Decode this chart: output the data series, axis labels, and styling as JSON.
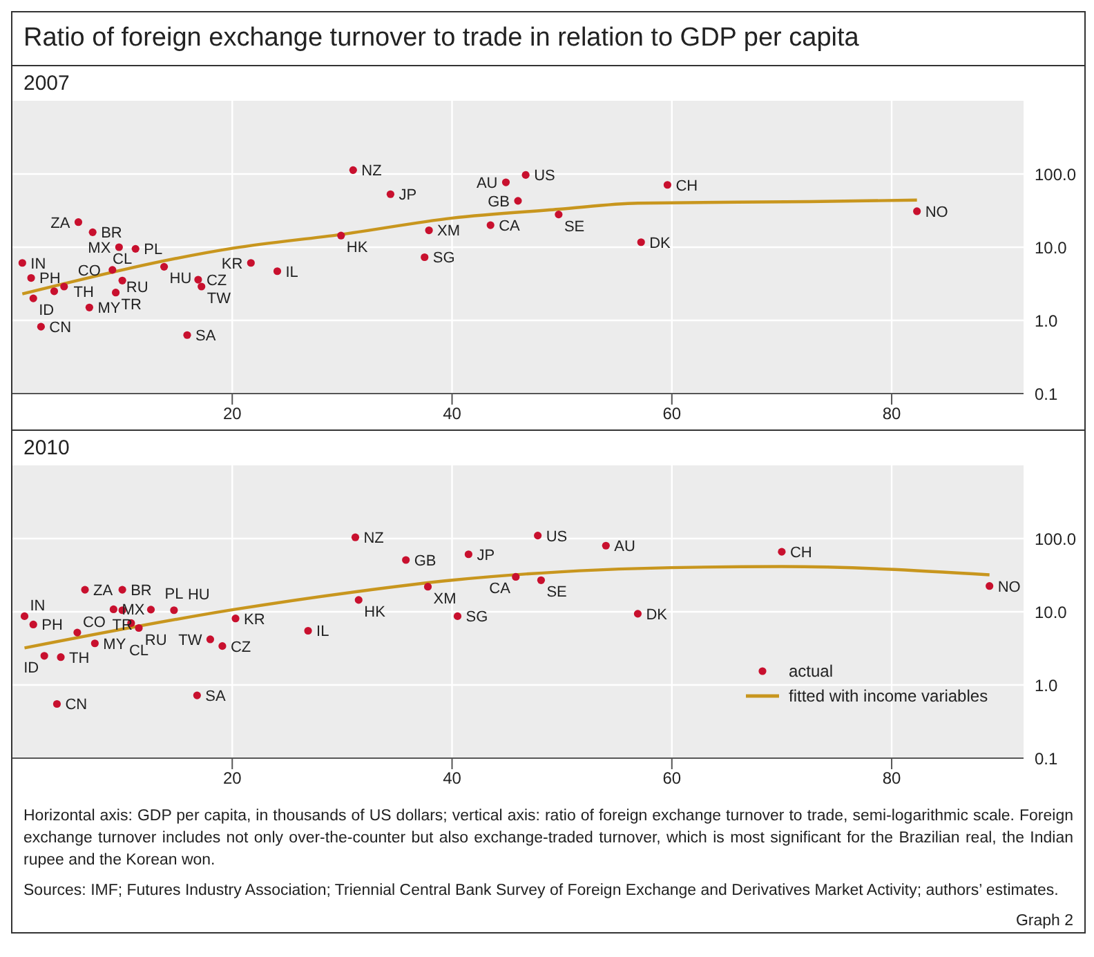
{
  "chart_data": [
    {
      "type": "scatter",
      "title": "Ratio of foreign exchange turnover to trade in relation to GDP per capita",
      "subtitle": "2007",
      "xlim": [
        0,
        92
      ],
      "xticks": [
        20,
        40,
        60,
        80
      ],
      "ylim": [
        0.1,
        1000
      ],
      "yticks": [
        {
          "value": 0.1,
          "label": "0.1"
        },
        {
          "value": 1,
          "label": "1.0"
        },
        {
          "value": 10,
          "label": "10.0"
        },
        {
          "value": 100,
          "label": "100.0"
        }
      ],
      "log": "y",
      "grid": true,
      "legend": false,
      "series": [
        {
          "marker": "circle",
          "color": "#c8102e",
          "x": [
            0.9,
            1.7,
            1.9,
            2.6,
            3.8,
            4.7,
            6.0,
            7.0,
            7.3,
            9.7,
            9.1,
            10.0,
            9.4,
            11.2,
            13.8,
            16.9,
            17.2,
            15.9,
            21.7,
            24.1,
            29.9,
            31.0,
            34.4,
            37.5,
            37.9,
            43.5,
            44.9,
            46.7,
            46.0,
            49.7,
            59.6,
            57.2,
            82.3
          ],
          "values": [
            6.1,
            3.8,
            2.0,
            0.82,
            2.5,
            2.9,
            22,
            1.5,
            16,
            10,
            4.9,
            3.5,
            2.4,
            9.5,
            5.4,
            3.6,
            2.9,
            0.63,
            6.1,
            4.7,
            14.4,
            113,
            53,
            7.3,
            17,
            20,
            77,
            97,
            43,
            28,
            71,
            11.7,
            31
          ],
          "value_labels": [
            "IN",
            "PH",
            "ID",
            "CN",
            "TH",
            "CO",
            "ZA",
            "MY",
            "BR",
            "MX",
            "RU",
            "CL",
            "TR",
            "PL",
            "HU",
            "CZ",
            "TW",
            "SA",
            "KR",
            "IL",
            "HK",
            "NZ",
            "JP",
            "SG",
            "XM",
            "CA",
            "AU",
            "US",
            "GB",
            "SE",
            "CH",
            "DK",
            "NO"
          ]
        },
        {
          "type": "line",
          "color": "#c8961e",
          "x": [
            0.9,
            20.1,
            30,
            40,
            49.7,
            56.9,
            72.5,
            82.3
          ],
          "values": [
            2.3,
            9.7,
            15,
            25,
            33,
            40,
            42,
            44
          ]
        }
      ]
    },
    {
      "type": "scatter",
      "title": "2010",
      "xlim": [
        0,
        92
      ],
      "xticks": [
        20,
        40,
        60,
        80
      ],
      "ylim": [
        0.1,
        1000
      ],
      "yticks": [
        {
          "value": 0.1,
          "label": "0.1"
        },
        {
          "value": 1,
          "label": "1.0"
        },
        {
          "value": 10,
          "label": "10.0"
        },
        {
          "value": 100,
          "label": "100.0"
        }
      ],
      "log": "y",
      "grid": true,
      "legend": "bottom right",
      "series": [
        {
          "marker": "circle",
          "name": "actual",
          "color": "#c8102e",
          "x": [
            1.1,
            1.9,
            2.9,
            4.4,
            4.05,
            5.9,
            7.5,
            6.6,
            10.0,
            9.2,
            10.0,
            10.8,
            11.5,
            12.6,
            14.7,
            18.0,
            19.1,
            16.8,
            20.3,
            26.9,
            31.5,
            31.2,
            35.8,
            41.5,
            37.8,
            40.5,
            45.8,
            47.8,
            48.1,
            54.0,
            70.0,
            56.9,
            88.9
          ],
          "values": [
            8.7,
            6.7,
            2.5,
            2.4,
            0.55,
            5.2,
            3.7,
            20,
            20,
            10.8,
            10.5,
            7.0,
            6.0,
            10.7,
            10.5,
            4.2,
            3.4,
            0.72,
            8.1,
            5.5,
            14.5,
            104,
            51,
            61,
            22,
            8.7,
            30,
            110,
            27,
            80,
            66,
            9.4,
            22.5
          ],
          "value_labels": [
            "IN",
            "PH",
            "ID",
            "TH",
            "CN",
            "CO",
            "MY",
            "ZA",
            "BR",
            "MX",
            "TR",
            "RU",
            "CL",
            "PL",
            "HU",
            "TW",
            "CZ",
            "SA",
            "KR",
            "IL",
            "HK",
            "NZ",
            "GB",
            "JP",
            "XM",
            "SG",
            "CA",
            "US",
            "SE",
            "AU",
            "CH",
            "DK",
            "NO"
          ]
        },
        {
          "type": "line",
          "name": "fitted with income variables",
          "color": "#c8961e",
          "x": [
            1.1,
            20.1,
            31.5,
            40,
            49.7,
            56.9,
            70,
            88.9
          ],
          "values": [
            3.2,
            10.7,
            19,
            27,
            35,
            39,
            41.5,
            32
          ]
        }
      ],
      "annotations": [
        "Horizontal axis: GDP per capita, in thousands of US dollars; vertical axis: ratio of foreign exchange turnover to trade, semi-logarithmic scale. Foreign exchange turnover includes not only over-the-counter but also exchange-traded turnover, which is most significant for the Brazilian real, the Indian rupee and the Korean won.",
        "Sources: IMF; Futures Industry Association; Triennial Central Bank Survey of Foreign Exchange and Derivatives Market Activity; authors’ estimates.",
        "Graph 2"
      ]
    }
  ]
}
